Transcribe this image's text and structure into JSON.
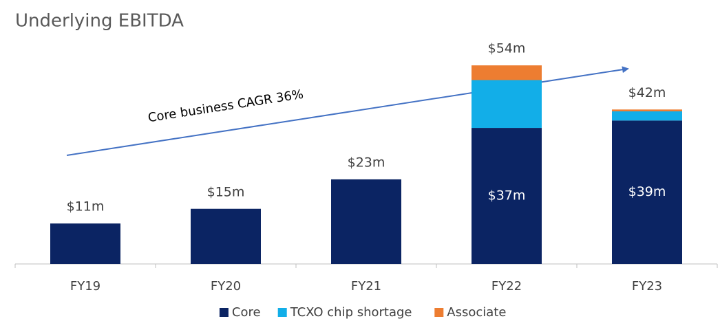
{
  "chart_data": {
    "type": "bar",
    "stacked": true,
    "title": "Underlying EBITDA",
    "categories": [
      "FY19",
      "FY20",
      "FY21",
      "FY22",
      "FY23"
    ],
    "series": [
      {
        "name": "Core",
        "color": "#0b2463",
        "values": [
          11,
          15,
          23,
          37,
          39
        ],
        "value_labels": [
          "$11m",
          "$15m",
          "$23m",
          "$37m",
          "$39m"
        ]
      },
      {
        "name": "TCXO chip shortage",
        "color": "#12aee8",
        "values": [
          0,
          0,
          0,
          13,
          2.5
        ]
      },
      {
        "name": "Associate",
        "color": "#ed7d31",
        "values": [
          0,
          0,
          0,
          4,
          0.5
        ]
      }
    ],
    "totals": [
      {
        "category": "FY22",
        "value": 54,
        "label": "$54m"
      },
      {
        "category": "FY23",
        "value": 42,
        "label": "$42m"
      }
    ],
    "annotations": [
      {
        "text": "Core business CAGR 36%"
      }
    ],
    "ylim": [
      0,
      60
    ],
    "legend": "bottom"
  }
}
